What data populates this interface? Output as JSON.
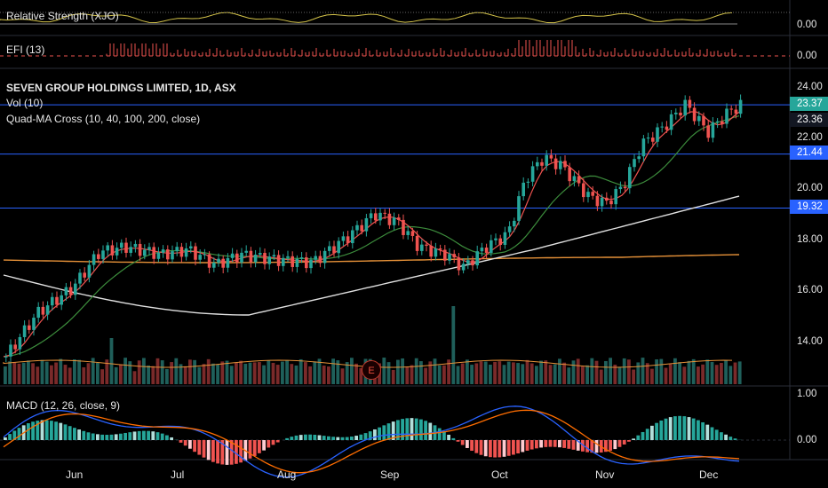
{
  "panes": {
    "rs": {
      "label": "Relative Strength (XJO)",
      "value": "0.00"
    },
    "efi": {
      "label": "EFI (13)",
      "value": "0.00"
    },
    "main": {
      "title": "SEVEN GROUP HOLDINGS LIMITED, 1D, ASX",
      "vol_label": "Vol (10)",
      "ma_label": "Quad-MA Cross (10, 40, 100, 200, close)"
    },
    "macd": {
      "label": "MACD (12, 26, close, 9)"
    }
  },
  "price_axis": [
    "24.00",
    "22.00",
    "20.00",
    "18.00",
    "16.00",
    "14.00"
  ],
  "macd_axis": [
    "1.00",
    "0.00"
  ],
  "price_tags": [
    {
      "value": "23.37",
      "color": "#26a69a"
    },
    {
      "value": "23.36",
      "color": "#131722"
    },
    {
      "value": "21.44",
      "color": "#2962ff"
    },
    {
      "value": "19.32",
      "color": "#2962ff"
    }
  ],
  "horizontal_levels": [
    23.37,
    21.44,
    19.32
  ],
  "months": [
    "Jun",
    "Jul",
    "Aug",
    "Sep",
    "Oct",
    "Nov",
    "Dec"
  ],
  "earnings_marker": "E",
  "colors": {
    "up": "#26a69a",
    "down": "#ef5350",
    "level": "#2962ff"
  }
}
